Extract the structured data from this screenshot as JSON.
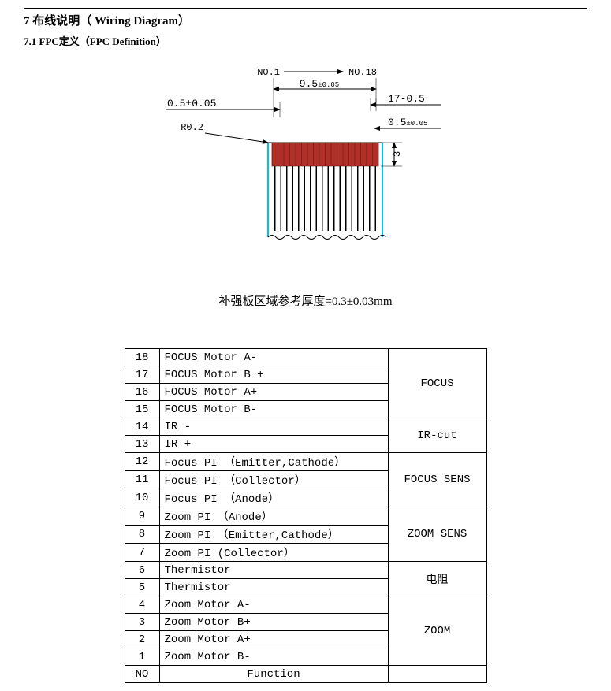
{
  "section": {
    "title": "7 布线说明（ Wiring Diagram）",
    "subtitle": "7.1 FPC定义（FPC  Definition）"
  },
  "diagram": {
    "label_no1": "NO.1",
    "label_no18": "NO.18",
    "dim_top_width": "9.5",
    "dim_top_width_tol": "±0.05",
    "dim_left_pitch": "0.5±0.05",
    "dim_r": "R0.2",
    "dim_right_top": "17-0.5",
    "dim_right_mid": "0.5",
    "dim_right_mid_tol": "±0.05",
    "dim_height_3": "3",
    "pad_count": 18,
    "pad_color": "#b03028",
    "body_fill": "#ffffff",
    "edge_stroke": "#00c4e6",
    "trace_stroke": "#000000",
    "caption": "补强板区域参考厚度=0.3±0.03mm"
  },
  "table": {
    "header_pin": "NO",
    "header_func": "Function",
    "rows": [
      {
        "pin": "18",
        "func": "FOCUS  Motor A-"
      },
      {
        "pin": "17",
        "func": "FOCUS  Motor B +"
      },
      {
        "pin": "16",
        "func": "FOCUS  Motor A+"
      },
      {
        "pin": "15",
        "func": "FOCUS  Motor B-"
      },
      {
        "pin": "14",
        "func": "IR  -"
      },
      {
        "pin": "13",
        "func": "IR  +"
      },
      {
        "pin": "12",
        "func": "Focus  PI （Emitter,Cathode）"
      },
      {
        "pin": "11",
        "func": "Focus  PI （Collector）"
      },
      {
        "pin": "10",
        "func": "Focus  PI （Anode）"
      },
      {
        "pin": "9",
        "func": "Zoom PI （Anode）"
      },
      {
        "pin": "8",
        "func": "Zoom PI （Emitter,Cathode）"
      },
      {
        "pin": "7",
        "func": "Zoom PI (Collector）"
      },
      {
        "pin": "6",
        "func": "Thermistor"
      },
      {
        "pin": "5",
        "func": "Thermistor"
      },
      {
        "pin": "4",
        "func": "Zoom  Motor A-"
      },
      {
        "pin": "3",
        "func": "Zoom  Motor B+"
      },
      {
        "pin": "2",
        "func": "Zoom  Motor A+"
      },
      {
        "pin": "1",
        "func": "Zoom  Motor B-"
      }
    ],
    "categories": [
      {
        "label": "FOCUS",
        "span": 4
      },
      {
        "label": "IR-cut",
        "span": 2
      },
      {
        "label": "FOCUS SENS",
        "span": 3
      },
      {
        "label": "ZOOM SENS",
        "span": 3
      },
      {
        "label": "电阻",
        "span": 2
      },
      {
        "label": "ZOOM",
        "span": 4
      }
    ]
  }
}
